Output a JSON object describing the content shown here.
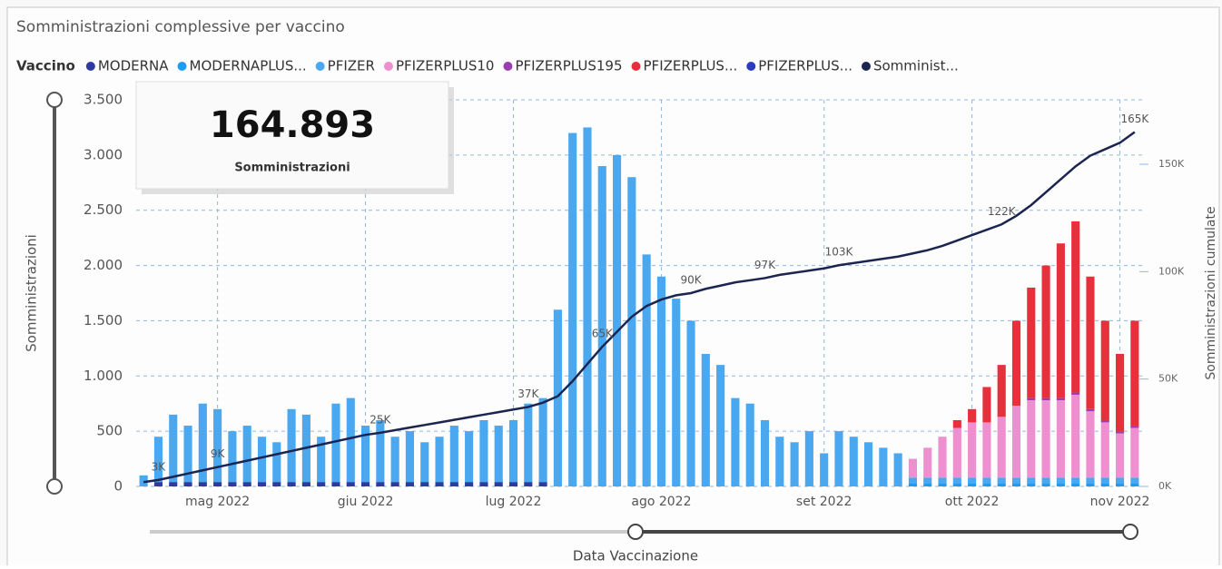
{
  "title": "Somministrazioni complessive per vaccino",
  "kpi_card": {
    "value": "164.893",
    "label": "Somministrazioni"
  },
  "chart_data": {
    "type": "bar",
    "stacked": true,
    "grid": true,
    "legend_title": "Vaccino",
    "legend_position": "top",
    "y_label": "Somministrazioni",
    "y2_label": "Somministrazioni cumulate",
    "x_label": "Data Vaccinazione",
    "categories": [
      null,
      null,
      null,
      null,
      null,
      "mag 2022",
      null,
      null,
      null,
      null,
      null,
      null,
      null,
      null,
      null,
      "giu 2022",
      null,
      null,
      null,
      null,
      null,
      null,
      null,
      null,
      null,
      "lug 2022",
      null,
      null,
      null,
      null,
      null,
      null,
      null,
      null,
      null,
      "ago 2022",
      null,
      null,
      null,
      null,
      null,
      null,
      null,
      null,
      null,
      null,
      "set 2022",
      null,
      null,
      null,
      null,
      null,
      null,
      null,
      null,
      null,
      "ott 2022",
      null,
      null,
      null,
      null,
      null,
      null,
      null,
      null,
      null,
      "nov 2022",
      null
    ],
    "ylim": [
      0,
      3500
    ],
    "yticks": [
      0,
      500,
      {
        "value": 1000,
        "label": "1.000"
      },
      {
        "value": 1500,
        "label": "1.500"
      },
      {
        "value": 2000,
        "label": "2.000"
      },
      {
        "value": 2500,
        "label": "2.500"
      },
      {
        "value": 3000,
        "label": "3.000"
      },
      {
        "value": 3500,
        "label": "3.500"
      }
    ],
    "y2lim": [
      0,
      180000
    ],
    "y2ticks": [
      {
        "value": 0,
        "label": "0K"
      },
      {
        "value": 50000,
        "label": "50K"
      },
      {
        "value": 100000,
        "label": "100K"
      },
      {
        "value": 150000,
        "label": "150K"
      }
    ],
    "series": [
      {
        "name": "MODERNA",
        "color": "#2e3a9e",
        "values": [
          0,
          40,
          40,
          40,
          40,
          40,
          40,
          40,
          40,
          40,
          40,
          40,
          40,
          40,
          40,
          40,
          40,
          40,
          40,
          40,
          40,
          40,
          40,
          40,
          40,
          40,
          40,
          40,
          0,
          0,
          0,
          0,
          0,
          0,
          0,
          0,
          0,
          0,
          0,
          0,
          0,
          0,
          0,
          0,
          0,
          0,
          0,
          0,
          0,
          0,
          0,
          0,
          0,
          0,
          0,
          0,
          0,
          0,
          0,
          0,
          0,
          0,
          0,
          0,
          0,
          0,
          0,
          0
        ]
      },
      {
        "name": "MODERNAPLUS...",
        "color": "#1f9cf0",
        "values": [
          0,
          0,
          0,
          0,
          0,
          0,
          0,
          0,
          0,
          0,
          0,
          0,
          0,
          0,
          0,
          0,
          0,
          0,
          0,
          0,
          0,
          0,
          0,
          0,
          0,
          0,
          0,
          0,
          0,
          0,
          0,
          0,
          0,
          0,
          0,
          0,
          0,
          0,
          0,
          0,
          0,
          0,
          0,
          0,
          0,
          0,
          0,
          0,
          0,
          0,
          0,
          0,
          30,
          30,
          30,
          30,
          30,
          30,
          30,
          30,
          30,
          30,
          30,
          30,
          30,
          30,
          30,
          30
        ]
      },
      {
        "name": "PFIZER",
        "color": "#4aa8f0",
        "values": [
          100,
          410,
          610,
          510,
          710,
          660,
          460,
          510,
          410,
          360,
          660,
          610,
          410,
          710,
          760,
          510,
          560,
          410,
          460,
          360,
          410,
          510,
          460,
          560,
          510,
          560,
          710,
          760,
          1600,
          3200,
          3250,
          2900,
          3000,
          2800,
          2100,
          1900,
          1700,
          1500,
          1200,
          1100,
          800,
          750,
          600,
          450,
          400,
          500,
          300,
          500,
          450,
          400,
          350,
          300,
          50,
          50,
          50,
          50,
          50,
          50,
          50,
          50,
          50,
          50,
          50,
          50,
          50,
          50,
          50,
          50
        ]
      },
      {
        "name": "PFIZERPLUS10",
        "color": "#ee8fcf",
        "values": [
          0,
          0,
          0,
          0,
          0,
          0,
          0,
          0,
          0,
          0,
          0,
          0,
          0,
          0,
          0,
          0,
          0,
          0,
          0,
          0,
          0,
          0,
          0,
          0,
          0,
          0,
          0,
          0,
          0,
          0,
          0,
          0,
          0,
          0,
          0,
          0,
          0,
          0,
          0,
          0,
          0,
          0,
          0,
          0,
          0,
          0,
          0,
          0,
          0,
          0,
          0,
          0,
          170,
          270,
          370,
          450,
          500,
          500,
          550,
          650,
          700,
          700,
          700,
          750,
          600,
          500,
          400,
          450
        ]
      },
      {
        "name": "PFIZERPLUS195",
        "color": "#9a3db0",
        "values": [
          0,
          0,
          0,
          0,
          0,
          0,
          0,
          0,
          0,
          0,
          0,
          0,
          0,
          0,
          0,
          0,
          0,
          0,
          0,
          0,
          0,
          0,
          0,
          0,
          0,
          0,
          0,
          0,
          0,
          0,
          0,
          0,
          0,
          0,
          0,
          0,
          0,
          0,
          0,
          0,
          0,
          0,
          0,
          0,
          0,
          0,
          0,
          0,
          0,
          0,
          0,
          0,
          0,
          0,
          0,
          0,
          0,
          0,
          0,
          0,
          20,
          20,
          20,
          20,
          20,
          20,
          20,
          20
        ]
      },
      {
        "name": "PFIZERPLUS...",
        "color": "#e8303c",
        "values": [
          0,
          0,
          0,
          0,
          0,
          0,
          0,
          0,
          0,
          0,
          0,
          0,
          0,
          0,
          0,
          0,
          0,
          0,
          0,
          0,
          0,
          0,
          0,
          0,
          0,
          0,
          0,
          0,
          0,
          0,
          0,
          0,
          0,
          0,
          0,
          0,
          0,
          0,
          0,
          0,
          0,
          0,
          0,
          0,
          0,
          0,
          0,
          0,
          0,
          0,
          0,
          0,
          0,
          0,
          0,
          70,
          120,
          320,
          470,
          770,
          1000,
          1200,
          1400,
          1550,
          1200,
          900,
          700,
          950
        ]
      },
      {
        "name": "PFIZERPLUS...",
        "color": "#2c3cc0",
        "values": [
          0,
          0,
          0,
          0,
          0,
          0,
          0,
          0,
          0,
          0,
          0,
          0,
          0,
          0,
          0,
          0,
          0,
          0,
          0,
          0,
          0,
          0,
          0,
          0,
          0,
          0,
          0,
          0,
          0,
          0,
          0,
          0,
          0,
          0,
          0,
          0,
          0,
          0,
          0,
          0,
          0,
          0,
          0,
          0,
          0,
          0,
          0,
          0,
          0,
          0,
          0,
          0,
          0,
          0,
          0,
          0,
          0,
          0,
          0,
          0,
          0,
          0,
          0,
          0,
          0,
          0,
          0,
          0
        ]
      },
      {
        "name": "Somminist...",
        "color": "#1b2550",
        "type": "line",
        "axis": "y2",
        "values": [
          2000,
          3000,
          4500,
          6000,
          7500,
          9000,
          10500,
          12000,
          13500,
          15000,
          16500,
          18000,
          19500,
          21000,
          22500,
          24000,
          25000,
          26200,
          27400,
          28600,
          29800,
          31000,
          32200,
          33400,
          34600,
          35800,
          37000,
          39000,
          42000,
          49000,
          57000,
          65000,
          72000,
          79000,
          84000,
          87000,
          89000,
          90000,
          92000,
          93500,
          95000,
          96000,
          97000,
          98500,
          99500,
          100500,
          101500,
          103000,
          104000,
          105000,
          106000,
          107000,
          108500,
          110000,
          112000,
          114500,
          117000,
          119500,
          122000,
          126000,
          131000,
          137000,
          143000,
          149000,
          154000,
          157000,
          160000,
          165000
        ],
        "value_labels": [
          null,
          "3K",
          null,
          null,
          null,
          "9K",
          null,
          null,
          null,
          null,
          null,
          null,
          null,
          null,
          null,
          null,
          "25K",
          null,
          null,
          null,
          null,
          null,
          null,
          null,
          null,
          null,
          "37K",
          null,
          null,
          null,
          null,
          "65K",
          null,
          null,
          null,
          null,
          null,
          "90K",
          null,
          null,
          null,
          null,
          "97K",
          null,
          null,
          null,
          null,
          "103K",
          null,
          null,
          null,
          null,
          null,
          null,
          null,
          null,
          null,
          null,
          "122K",
          null,
          null,
          null,
          null,
          null,
          null,
          null,
          null,
          "165K"
        ]
      }
    ]
  }
}
